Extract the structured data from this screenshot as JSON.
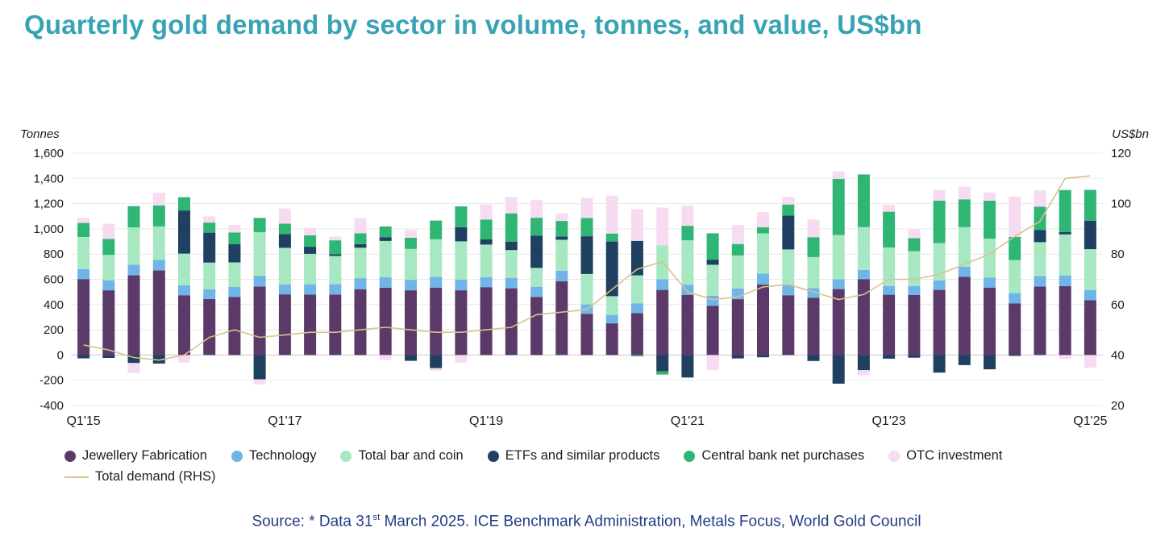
{
  "title": "Quarterly gold demand by sector in volume, tonnes, and value, US$bn",
  "source": {
    "prefix": "Source: * Data 31",
    "superscript": "st",
    "suffix": " March 2025. ICE Benchmark Administration, Metals Focus, World Gold Council"
  },
  "legend": {
    "items": [
      {
        "label": "Jewellery Fabrication",
        "color": "#5b3a69"
      },
      {
        "label": "Technology",
        "color": "#70b5e8"
      },
      {
        "label": "Total bar and coin",
        "color": "#a7e8c3"
      },
      {
        "label": "ETFs and similar products",
        "color": "#1f4060"
      },
      {
        "label": "Central bank net purchases",
        "color": "#30b674"
      },
      {
        "label": "OTC investment",
        "color": "#f7dbf1"
      }
    ],
    "line_item": {
      "label": "Total demand (RHS)",
      "color": "#d8c28e"
    }
  },
  "chart_data": {
    "type": "bar",
    "stacked": true,
    "title": "Quarterly gold demand by sector in volume, tonnes, and value, US$bn",
    "left_axis": {
      "label": "Tonnes",
      "min": -400,
      "max": 1600,
      "step": 200
    },
    "right_axis": {
      "label": "US$bn",
      "min": 20,
      "max": 120,
      "step": 20
    },
    "x_tick_labels": [
      "Q1'15",
      "Q1'17",
      "Q1'19",
      "Q1'21",
      "Q1'23",
      "Q1'25"
    ],
    "grid": true,
    "legend_position": "bottom",
    "categories": [
      "Q1'15",
      "Q2'15",
      "Q3'15",
      "Q4'15",
      "Q1'16",
      "Q2'16",
      "Q3'16",
      "Q4'16",
      "Q1'17",
      "Q2'17",
      "Q3'17",
      "Q4'17",
      "Q1'18",
      "Q2'18",
      "Q3'18",
      "Q4'18",
      "Q1'19",
      "Q2'19",
      "Q3'19",
      "Q4'19",
      "Q1'20",
      "Q2'20",
      "Q3'20",
      "Q4'20",
      "Q1'21",
      "Q2'21",
      "Q3'21",
      "Q4'21",
      "Q1'22",
      "Q2'22",
      "Q3'22",
      "Q4'22",
      "Q1'23",
      "Q2'23",
      "Q3'23",
      "Q4'23",
      "Q1'24",
      "Q2'24",
      "Q3'24",
      "Q4'24",
      "Q1'25"
    ],
    "series": [
      {
        "name": "Jewellery Fabrication",
        "color": "#5b3a69",
        "values": [
          602,
          513,
          632,
          671,
          474,
          444,
          461,
          544,
          481,
          480,
          479,
          522,
          534,
          513,
          535,
          513,
          538,
          529,
          461,
          585,
          327,
          251,
          333,
          516,
          477,
          391,
          443,
          560,
          474,
          453,
          523,
          602,
          478,
          476,
          516,
          620,
          535,
          410,
          543,
          547,
          434
        ]
      },
      {
        "name": "Technology",
        "color": "#70b5e8",
        "values": [
          80,
          80,
          84,
          84,
          79,
          76,
          79,
          84,
          79,
          81,
          84,
          87,
          82,
          83,
          85,
          84,
          79,
          81,
          80,
          84,
          74,
          67,
          77,
          84,
          81,
          80,
          84,
          86,
          81,
          78,
          77,
          72,
          70,
          70,
          75,
          81,
          79,
          81,
          83,
          84,
          80
        ]
      },
      {
        "name": "Total bar and coin",
        "color": "#a7e8c3",
        "values": [
          253,
          201,
          296,
          264,
          251,
          213,
          194,
          345,
          290,
          241,
          222,
          241,
          288,
          245,
          298,
          304,
          258,
          222,
          150,
          245,
          241,
          149,
          222,
          269,
          351,
          245,
          262,
          318,
          282,
          245,
          351,
          340,
          304,
          277,
          296,
          313,
          309,
          261,
          269,
          325,
          325
        ]
      },
      {
        "name": "ETFs and similar products",
        "color": "#1f4060",
        "values": [
          -26,
          -23,
          -63,
          -68,
          342,
          237,
          144,
          -193,
          109,
          56,
          13,
          29,
          28,
          -46,
          -104,
          113,
          41,
          67,
          256,
          26,
          299,
          433,
          273,
          -130,
          -178,
          40,
          -27,
          -18,
          269,
          -47,
          -227,
          -120,
          -29,
          -21,
          -139,
          -80,
          -113,
          -7,
          95,
          19,
          226
        ]
      },
      {
        "name": "Central bank net purchases",
        "color": "#30b674",
        "values": [
          112,
          127,
          168,
          167,
          105,
          80,
          93,
          114,
          82,
          90,
          111,
          86,
          87,
          89,
          148,
          164,
          157,
          224,
          141,
          123,
          145,
          63,
          -10,
          -25,
          115,
          209,
          91,
          48,
          87,
          158,
          445,
          417,
          284,
          103,
          337,
          220,
          300,
          184,
          186,
          333,
          244
        ]
      },
      {
        "name": "OTC investment",
        "color": "#f7dbf1",
        "values": [
          40,
          120,
          -80,
          100,
          -60,
          50,
          60,
          -40,
          120,
          60,
          30,
          120,
          -40,
          60,
          -20,
          -60,
          120,
          130,
          140,
          60,
          160,
          300,
          250,
          300,
          160,
          -120,
          150,
          120,
          60,
          140,
          60,
          -40,
          55,
          75,
          85,
          100,
          65,
          320,
          130,
          -30,
          -100
        ]
      }
    ],
    "line_series": {
      "name": "Total demand (RHS)",
      "color": "#d8c28e",
      "axis": "right",
      "values": [
        44,
        42,
        39,
        38,
        40,
        47,
        50,
        47,
        48,
        49,
        49,
        50,
        51,
        50,
        49,
        49,
        50,
        51,
        56,
        57,
        58,
        66,
        74,
        77,
        65,
        62,
        63,
        67,
        68,
        65,
        62,
        64,
        70,
        70,
        72,
        76,
        80,
        87,
        93,
        110,
        111
      ]
    }
  }
}
